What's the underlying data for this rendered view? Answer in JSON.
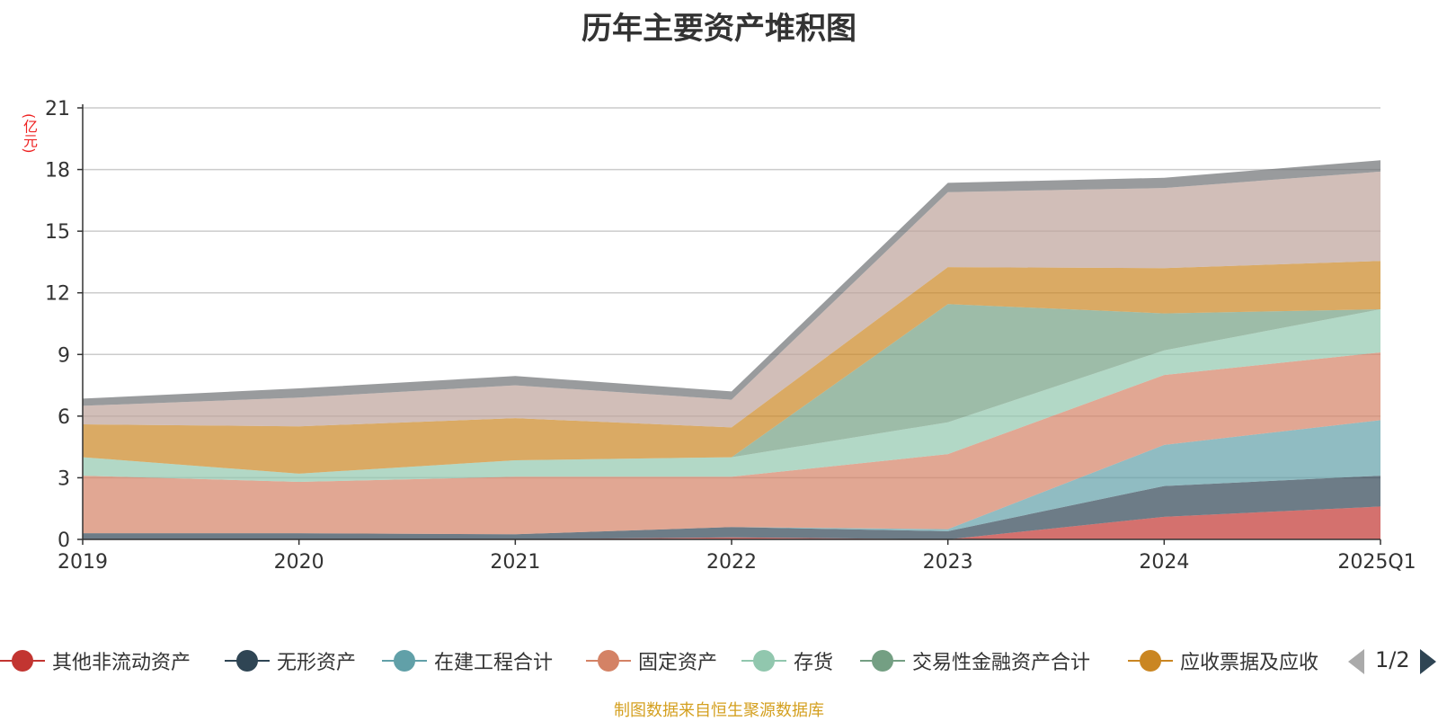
{
  "title": "历年主要资产堆积图",
  "unit": "(亿元)",
  "source": "制图数据来自恒生聚源数据库",
  "legend_page": "1/2",
  "chart_data": {
    "type": "area",
    "stacked": true,
    "title": "历年主要资产堆积图",
    "ylabel": "(亿元)",
    "x": [
      "2019",
      "2020",
      "2021",
      "2022",
      "2023",
      "2024",
      "2025Q1"
    ],
    "ylim": [
      0,
      21
    ],
    "yticks": [
      0,
      3,
      6,
      9,
      12,
      15,
      18,
      21
    ],
    "grid": true,
    "legend_position": "bottom",
    "series": [
      {
        "name": "其他非流动资产",
        "color": "#c23531",
        "values": [
          0.0,
          0.0,
          0.0,
          0.1,
          0.0,
          1.1,
          1.6
        ]
      },
      {
        "name": "无形资产",
        "color": "#2f4554",
        "values": [
          0.3,
          0.3,
          0.25,
          0.5,
          0.4,
          1.5,
          1.5
        ]
      },
      {
        "name": "在建工程合计",
        "color": "#61a0a8",
        "values": [
          0.0,
          0.0,
          0.0,
          0.0,
          0.1,
          2.0,
          2.7
        ]
      },
      {
        "name": "固定资产",
        "color": "#d48265",
        "values": [
          2.8,
          2.5,
          2.8,
          2.45,
          3.65,
          3.4,
          3.3
        ]
      },
      {
        "name": "存货",
        "color": "#91c7ae",
        "values": [
          0.9,
          0.4,
          0.8,
          0.95,
          1.55,
          1.2,
          2.1
        ]
      },
      {
        "name": "交易性金融资产合计",
        "color": "#749f83",
        "values": [
          0.0,
          0.0,
          0.0,
          0.0,
          5.75,
          1.8,
          0.0
        ]
      },
      {
        "name": "应收票据及应收",
        "color": "#ca8622",
        "values": [
          1.6,
          2.3,
          2.05,
          1.45,
          1.8,
          2.2,
          2.35
        ]
      },
      {
        "name": "",
        "color": "#bda29a",
        "values": [
          0.9,
          1.4,
          1.6,
          1.35,
          3.65,
          3.9,
          4.35
        ]
      },
      {
        "name": "",
        "color": "#6e7074",
        "values": [
          0.35,
          0.45,
          0.45,
          0.4,
          0.45,
          0.5,
          0.55
        ]
      }
    ]
  }
}
